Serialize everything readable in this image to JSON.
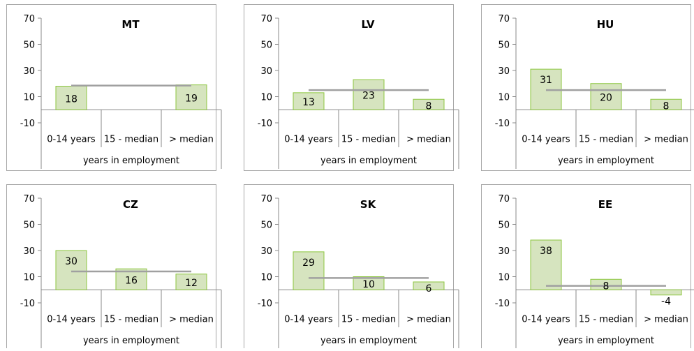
{
  "chart_data": [
    {
      "type": "bar",
      "title": "MT",
      "categories": [
        "0-14 years",
        "15 - median",
        "> median"
      ],
      "values": [
        18,
        null,
        19
      ],
      "value_labels": [
        "18",
        "",
        "19"
      ],
      "average": 18.5,
      "xlabel": "years in employment",
      "ylabel": "",
      "ylim": [
        -10,
        70
      ],
      "yticks": [
        "70",
        "50",
        "30",
        "10",
        "-10"
      ],
      "grid": false
    },
    {
      "type": "bar",
      "title": "LV",
      "categories": [
        "0-14 years",
        "15 - median",
        "> median"
      ],
      "values": [
        13,
        23,
        8
      ],
      "value_labels": [
        "13",
        "23",
        "8"
      ],
      "average": 15,
      "xlabel": "years in employment",
      "ylabel": "",
      "ylim": [
        -10,
        70
      ],
      "yticks": [
        "70",
        "50",
        "30",
        "10",
        "-10"
      ],
      "grid": false
    },
    {
      "type": "bar",
      "title": "HU",
      "categories": [
        "0-14 years",
        "15 - median",
        "> median"
      ],
      "values": [
        31,
        20,
        8
      ],
      "value_labels": [
        "31",
        "20",
        "8"
      ],
      "average": 15,
      "xlabel": "years in employment",
      "ylabel": "",
      "ylim": [
        -10,
        70
      ],
      "yticks": [
        "70",
        "50",
        "30",
        "10",
        "-10"
      ],
      "grid": false
    },
    {
      "type": "bar",
      "title": "CZ",
      "categories": [
        "0-14 years",
        "15 - median",
        "> median"
      ],
      "values": [
        30,
        16,
        12
      ],
      "value_labels": [
        "30",
        "16",
        "12"
      ],
      "average": 14,
      "xlabel": "years in employment",
      "ylabel": "",
      "ylim": [
        -10,
        70
      ],
      "yticks": [
        "70",
        "50",
        "30",
        "10",
        "-10"
      ],
      "grid": false
    },
    {
      "type": "bar",
      "title": "SK",
      "categories": [
        "0-14 years",
        "15 - median",
        "> median"
      ],
      "values": [
        29,
        10,
        6
      ],
      "value_labels": [
        "29",
        "10",
        "6"
      ],
      "average": 9,
      "xlabel": "years in employment",
      "ylabel": "",
      "ylim": [
        -10,
        70
      ],
      "yticks": [
        "70",
        "50",
        "30",
        "10",
        "-10"
      ],
      "grid": false
    },
    {
      "type": "bar",
      "title": "EE",
      "categories": [
        "0-14 years",
        "15 - median",
        "> median"
      ],
      "values": [
        38,
        8,
        -4
      ],
      "value_labels": [
        "38",
        "8",
        "-4"
      ],
      "average": 3,
      "xlabel": "years in employment",
      "ylabel": "",
      "ylim": [
        -10,
        70
      ],
      "yticks": [
        "70",
        "50",
        "30",
        "10",
        "-10"
      ],
      "grid": false
    }
  ],
  "colors": {
    "bar_fill": "#d6e4bf",
    "bar_stroke": "#8cc63f",
    "average_line": "#a0a0a0",
    "axis": "#888888",
    "panel_border": "#a6a6a6"
  }
}
